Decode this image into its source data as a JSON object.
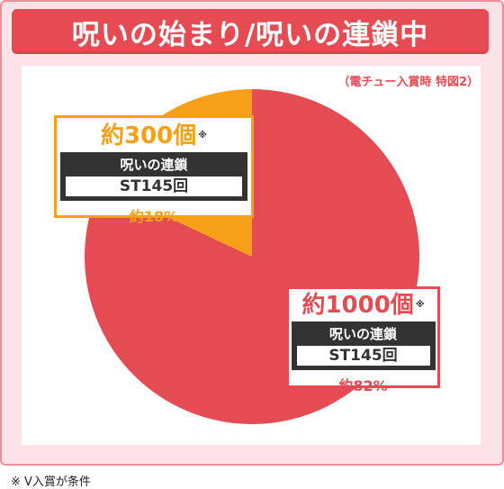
{
  "title": "呪いの始まり/呪いの連鎖中",
  "subnote": "（電チュー入賞時 特図2）",
  "footnote": "※ V入賞が条件",
  "colors": {
    "red": "#e54b52",
    "orange": "#f5a017",
    "frame": "#fde3e8"
  },
  "chart_data": {
    "type": "pie",
    "title": "呪いの始まり/呪いの連鎖中",
    "slices": [
      {
        "label": "呪いの連鎖",
        "count": "約1000個",
        "mark": "※",
        "st": "ST145回",
        "value": 82,
        "pct_label": "約82%",
        "color": "#e54b52"
      },
      {
        "label": "呪いの連鎖",
        "count": "約300個",
        "mark": "※",
        "st": "ST145回",
        "value": 18,
        "pct_label": "約18%",
        "color": "#f5a017"
      }
    ]
  }
}
